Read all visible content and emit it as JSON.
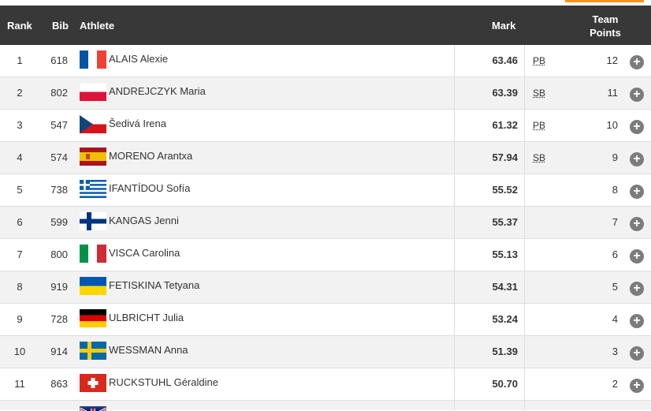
{
  "header": {
    "rank": "Rank",
    "bib": "Bib",
    "athlete": "Athlete",
    "mark": "Mark",
    "team_points_line1": "Team",
    "team_points_line2": "Points"
  },
  "rows": [
    {
      "rank": "1",
      "bib": "618",
      "athlete": "ALAIS Alexie",
      "flag": "france-flag-icon",
      "mark": "63.46",
      "note": "PB",
      "points": "12"
    },
    {
      "rank": "2",
      "bib": "802",
      "athlete": "ANDREJCZYK Maria",
      "flag": "poland-flag-icon",
      "mark": "63.39",
      "note": "SB",
      "points": "11"
    },
    {
      "rank": "3",
      "bib": "547",
      "athlete": "Šedivá Irena",
      "flag": "czechia-flag-icon",
      "mark": "61.32",
      "note": "PB",
      "points": "10"
    },
    {
      "rank": "4",
      "bib": "574",
      "athlete": "MORENO Arantxa",
      "flag": "spain-flag-icon",
      "mark": "57.94",
      "note": "SB",
      "points": "9"
    },
    {
      "rank": "5",
      "bib": "738",
      "athlete": "IFANTÍDOU Sofía",
      "flag": "greece-flag-icon",
      "mark": "55.52",
      "note": "",
      "points": "8"
    },
    {
      "rank": "6",
      "bib": "599",
      "athlete": "KANGAS Jenni",
      "flag": "finland-flag-icon",
      "mark": "55.37",
      "note": "",
      "points": "7"
    },
    {
      "rank": "7",
      "bib": "800",
      "athlete": "VISCA Carolina",
      "flag": "italy-flag-icon",
      "mark": "55.13",
      "note": "",
      "points": "6"
    },
    {
      "rank": "8",
      "bib": "919",
      "athlete": "FETISKINA Tetyana",
      "flag": "ukraine-flag-icon",
      "mark": "54.31",
      "note": "",
      "points": "5"
    },
    {
      "rank": "9",
      "bib": "728",
      "athlete": "ULBRICHT Julia",
      "flag": "germany-flag-icon",
      "mark": "53.24",
      "note": "",
      "points": "4"
    },
    {
      "rank": "10",
      "bib": "914",
      "athlete": "WESSMAN Anna",
      "flag": "sweden-flag-icon",
      "mark": "51.39",
      "note": "",
      "points": "3"
    },
    {
      "rank": "11",
      "bib": "863",
      "athlete": "RUCKSTUHL Géraldine",
      "flag": "switzerland-flag-icon",
      "mark": "50.70",
      "note": "",
      "points": "2"
    }
  ],
  "partial_row_flag": "united-kingdom-flag-icon",
  "expand_icon": "plus-circle-icon",
  "colors": {
    "header_bg": "#383838",
    "accent": "#f7941d",
    "row_alt": "#f2f2f2",
    "expand_button": "#7c7c7c"
  }
}
